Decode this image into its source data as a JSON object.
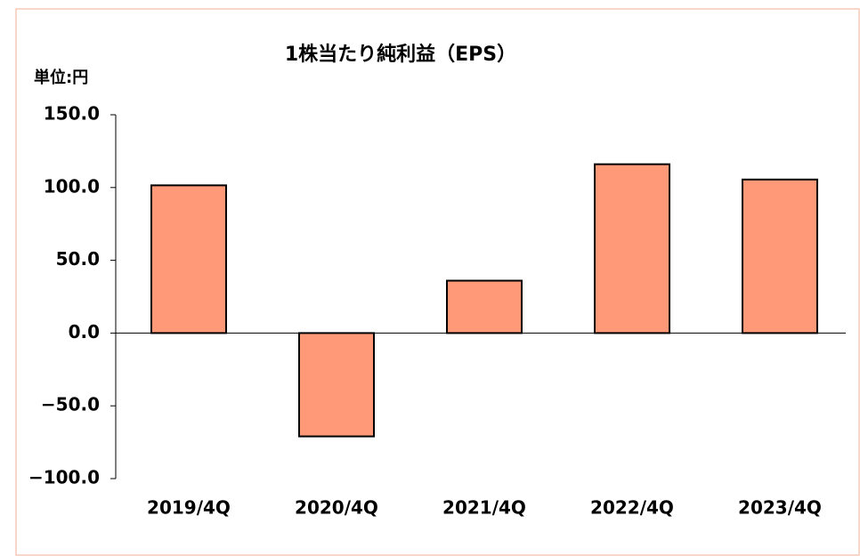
{
  "chart_data": {
    "type": "bar",
    "title": "1株当たり純利益（EPS）",
    "unit_label": "単位:円",
    "categories": [
      "2019/4Q",
      "2020/4Q",
      "2021/4Q",
      "2022/4Q",
      "2023/4Q"
    ],
    "values": [
      101.5,
      -71,
      36,
      116,
      105.5
    ],
    "color": "#ff9977",
    "ylim": [
      -100,
      150
    ],
    "yticks": [
      {
        "value": -100,
        "label": "−100.0"
      },
      {
        "value": -50,
        "label": "−50.0"
      },
      {
        "value": 0,
        "label": "0.0"
      },
      {
        "value": 50,
        "label": "50.0"
      },
      {
        "value": 100,
        "label": "100.0"
      },
      {
        "value": 150,
        "label": "150.0"
      }
    ],
    "grid": false
  }
}
